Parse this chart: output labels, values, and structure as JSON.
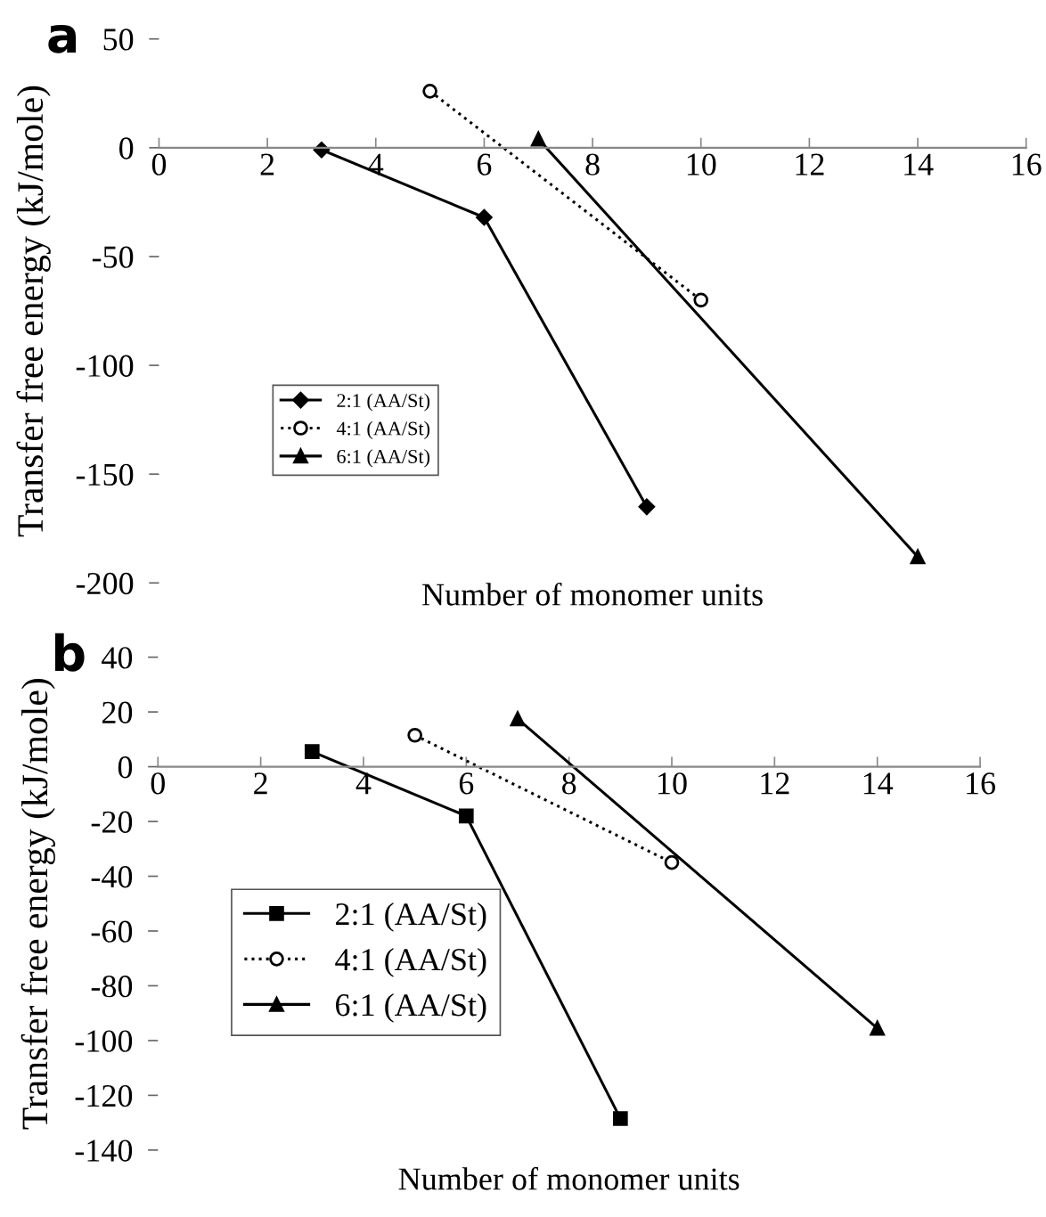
{
  "chart_data": [
    {
      "type": "line",
      "title": "a",
      "xlabel": "Number of monomer units",
      "ylabel": "Transfer free energy (kJ/mole)",
      "xlim": [
        0,
        16
      ],
      "xticks": [
        0,
        2,
        4,
        6,
        8,
        10,
        12,
        14,
        16
      ],
      "ylim": [
        -200,
        50
      ],
      "yticks": [
        -200,
        -150,
        -100,
        -50,
        0,
        50
      ],
      "grid": false,
      "legend": "left",
      "series": [
        {
          "name": "2:1 (AA/St)",
          "color": "#000000",
          "marker": "diamond",
          "line_style": "solid",
          "x": [
            3,
            6,
            9
          ],
          "values": [
            -1,
            -32,
            -165
          ]
        },
        {
          "name": "4:1 (AA/St)",
          "color": "#000000",
          "marker": "circle",
          "line_style": "dotted",
          "x": [
            5,
            10
          ],
          "values": [
            26,
            -70
          ]
        },
        {
          "name": "6:1 (AA/St)",
          "color": "#000000",
          "marker": "triangle",
          "line_style": "solid",
          "x": [
            7,
            14
          ],
          "values": [
            4,
            -188
          ]
        }
      ]
    },
    {
      "type": "line",
      "title": "b",
      "xlabel": "Number of monomer units",
      "ylabel": "Transfer free energy (kJ/mole)",
      "xlim": [
        0,
        16
      ],
      "xticks": [
        0,
        2,
        4,
        6,
        8,
        10,
        12,
        14,
        16
      ],
      "ylim": [
        -140,
        40
      ],
      "yticks": [
        -140,
        -120,
        -100,
        -80,
        -60,
        -40,
        -20,
        0,
        20,
        40
      ],
      "grid": false,
      "legend": "left",
      "series": [
        {
          "name": "2:1 (AA/St)",
          "color": "#000000",
          "marker": "square",
          "line_style": "solid",
          "x": [
            3,
            6,
            9
          ],
          "values": [
            5.5,
            -18,
            -128.5
          ]
        },
        {
          "name": "4:1 (AA/St)",
          "color": "#000000",
          "marker": "circle",
          "line_style": "dotted",
          "x": [
            5,
            10
          ],
          "values": [
            11.5,
            -35
          ]
        },
        {
          "name": "6:1 (AA/St)",
          "color": "#000000",
          "marker": "triangle",
          "line_style": "solid",
          "x": [
            7,
            14
          ],
          "values": [
            17.5,
            -95.5
          ]
        }
      ]
    }
  ]
}
